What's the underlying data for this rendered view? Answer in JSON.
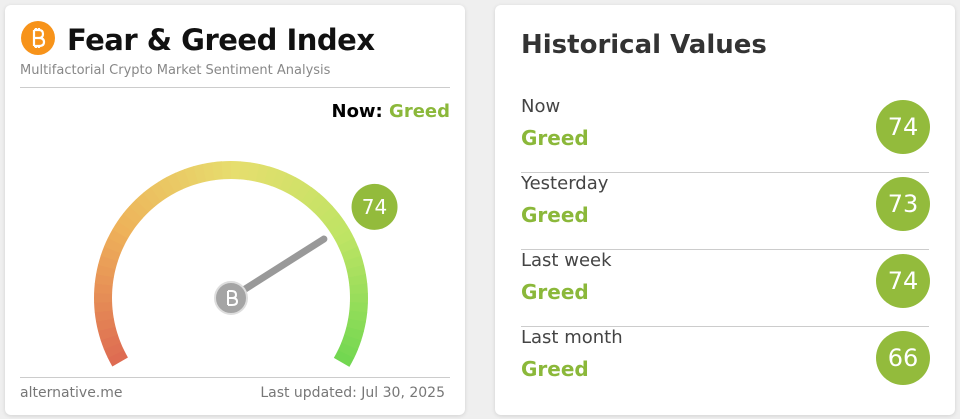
{
  "index_card": {
    "title": "Fear & Greed Index",
    "subtitle": "Multifactorial Crypto Market Sentiment Analysis",
    "now_label": "Now:",
    "now_class": "Greed",
    "value": 74,
    "range": [
      0,
      100
    ],
    "source": "alternative.me",
    "updated": "Last updated: Jul 30, 2025"
  },
  "historical": {
    "title": "Historical Values",
    "rows": [
      {
        "period": "Now",
        "class": "Greed",
        "value": 74
      },
      {
        "period": "Yesterday",
        "class": "Greed",
        "value": 73
      },
      {
        "period": "Last week",
        "class": "Greed",
        "value": 74
      },
      {
        "period": "Last month",
        "class": "Greed",
        "value": 66
      }
    ]
  }
}
